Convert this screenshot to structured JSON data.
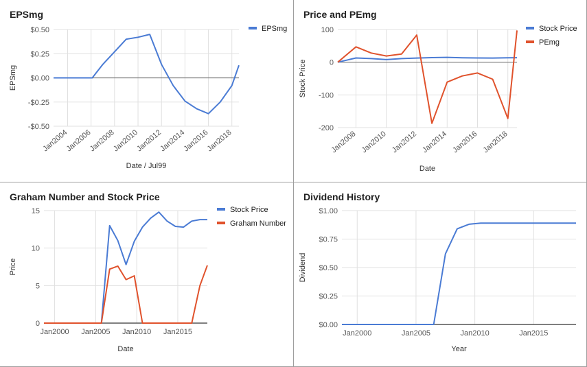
{
  "colors": {
    "blue": "#4a7bd4",
    "orange": "#e0522c",
    "grid": "#e0e0e0",
    "axis": "#555555",
    "tick": "#555555"
  },
  "chart_data": [
    {
      "id": "eps",
      "type": "line",
      "title": "EPSmg",
      "xlabel": "Date / Jul99",
      "ylabel": "EPSmg",
      "xtype": "year",
      "xlim": [
        2002.8,
        2018.6
      ],
      "ylim": [
        -0.5,
        0.5
      ],
      "yticks": [
        -0.5,
        -0.25,
        0,
        0.25,
        0.5
      ],
      "ytick_labels": [
        "-$0.50",
        "-$0.25",
        "$0.00",
        "$0.25",
        "$0.50"
      ],
      "xticks": [
        2004,
        2006,
        2008,
        2010,
        2012,
        2014,
        2016,
        2018
      ],
      "xtick_labels": [
        "Jan2004",
        "Jan2006",
        "Jan2008",
        "Jan2010",
        "Jan2012",
        "Jan2014",
        "Jan2016",
        "Jan2018"
      ],
      "xtick_rotate": true,
      "zero_line": true,
      "legend": "right",
      "series": [
        {
          "name": "EPSmg",
          "color": "blue",
          "x": [
            2002.8,
            2004,
            2005,
            2006.1,
            2007,
            2008,
            2009,
            2010,
            2011,
            2012,
            2013,
            2014,
            2015,
            2016,
            2017,
            2018,
            2018.6
          ],
          "y": [
            0,
            0,
            0,
            0,
            0.14,
            0.27,
            0.4,
            0.42,
            0.45,
            0.14,
            -0.08,
            -0.24,
            -0.32,
            -0.37,
            -0.25,
            -0.08,
            0.13
          ]
        }
      ]
    },
    {
      "id": "pe",
      "type": "line",
      "title": "Price and PEmg",
      "xlabel": "Date",
      "ylabel": "Stock Price",
      "xtype": "year",
      "xlim": [
        2006.8,
        2018.6
      ],
      "ylim": [
        -200,
        100
      ],
      "yticks": [
        -200,
        -100,
        0,
        100
      ],
      "ytick_labels": [
        "-200",
        "-100",
        "0",
        "100"
      ],
      "xticks": [
        2008,
        2010,
        2012,
        2014,
        2016,
        2018
      ],
      "xtick_labels": [
        "Jan2008",
        "Jan2010",
        "Jan2012",
        "Jan2014",
        "Jan2016",
        "Jan2018"
      ],
      "xtick_rotate": true,
      "zero_line": true,
      "legend": "right",
      "series": [
        {
          "name": "Stock Price",
          "color": "blue",
          "x": [
            2006.8,
            2008,
            2009,
            2010,
            2011,
            2012,
            2013,
            2014,
            2015,
            2016,
            2017,
            2018,
            2018.6
          ],
          "y": [
            0,
            13,
            11,
            8,
            11,
            12.8,
            14,
            14.8,
            13.6,
            12.9,
            12.7,
            13.5,
            13.8
          ]
        },
        {
          "name": "PEmg",
          "color": "orange",
          "x": [
            2006.8,
            2008,
            2009,
            2010,
            2011,
            2012,
            2013,
            2014,
            2015,
            2016,
            2017,
            2018,
            2018.6
          ],
          "y": [
            0,
            47,
            28,
            19,
            25,
            83,
            -187,
            -61,
            -42,
            -33,
            -52,
            -172,
            97
          ]
        }
      ]
    },
    {
      "id": "graham",
      "type": "line",
      "title": "Graham Number and Stock Price",
      "xlabel": "Date",
      "ylabel": "Price",
      "xtype": "year",
      "xlim": [
        1998.7,
        2018.6
      ],
      "ylim": [
        0,
        15
      ],
      "yticks": [
        0,
        5,
        10,
        15
      ],
      "ytick_labels": [
        "0",
        "5",
        "10",
        "15"
      ],
      "xticks": [
        2000,
        2005,
        2010,
        2015
      ],
      "xtick_labels": [
        "Jan2000",
        "Jan2005",
        "Jan2010",
        "Jan2015"
      ],
      "xtick_rotate": false,
      "zero_line": false,
      "legend": "right",
      "series": [
        {
          "name": "Stock Price",
          "color": "blue",
          "x": [
            1998.7,
            2005.7,
            2006.7,
            2007.7,
            2008.7,
            2009.7,
            2010.7,
            2011.7,
            2012.7,
            2013.7,
            2014.7,
            2015.7,
            2016.7,
            2017.7,
            2018.6
          ],
          "y": [
            0,
            0,
            13,
            11,
            7.8,
            10.9,
            12.8,
            14,
            14.8,
            13.6,
            12.9,
            12.8,
            13.6,
            13.8,
            13.8
          ]
        },
        {
          "name": "Graham Number",
          "color": "orange",
          "x": [
            1998.7,
            2005.7,
            2006.7,
            2007.7,
            2008.7,
            2009.7,
            2010.7,
            2011.7,
            2012.7,
            2013.7,
            2014.7,
            2015.7,
            2016.7,
            2017.7,
            2018.6
          ],
          "y": [
            0,
            0,
            7.2,
            7.6,
            5.8,
            6.3,
            0,
            0,
            0,
            0,
            0,
            0,
            0,
            5,
            7.7
          ]
        }
      ]
    },
    {
      "id": "div",
      "type": "line",
      "title": "Dividend History",
      "xlabel": "Year",
      "ylabel": "Dividend",
      "xtype": "year",
      "xlim": [
        1998.7,
        2018.6
      ],
      "ylim": [
        0,
        1
      ],
      "yticks": [
        0,
        0.25,
        0.5,
        0.75,
        1
      ],
      "ytick_labels": [
        "$0.00",
        "$0.25",
        "$0.50",
        "$0.75",
        "$1.00"
      ],
      "xticks": [
        2000,
        2005,
        2010,
        2015
      ],
      "xtick_labels": [
        "Jan2000",
        "Jan2005",
        "Jan2010",
        "Jan2015"
      ],
      "xtick_rotate": false,
      "zero_line": false,
      "legend": "none",
      "series": [
        {
          "name": "",
          "color": "blue",
          "x": [
            1998.7,
            2006.5,
            2007.5,
            2008.5,
            2009.5,
            2010.5,
            2011.5,
            2012.5,
            2013.5,
            2014.5,
            2015.5,
            2016.5,
            2017.5,
            2018.6
          ],
          "y": [
            0,
            0,
            0.62,
            0.84,
            0.88,
            0.89,
            0.89,
            0.89,
            0.89,
            0.89,
            0.89,
            0.89,
            0.89,
            0.89
          ]
        }
      ]
    }
  ]
}
